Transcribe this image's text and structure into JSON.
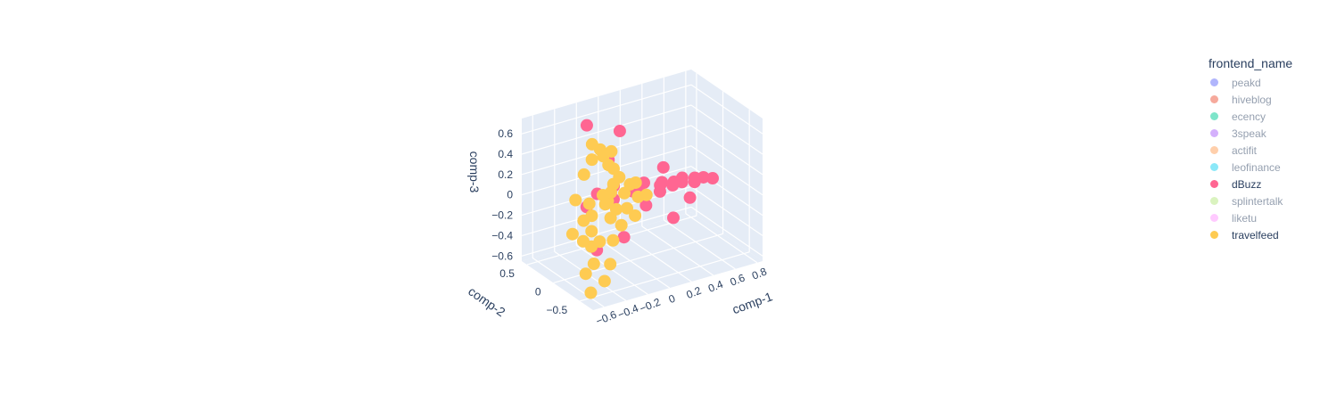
{
  "chart_data": {
    "type": "scatter3d",
    "legend_title": "frontend_name",
    "legend_placement": "right",
    "axes": {
      "x": {
        "title": "comp-1",
        "ticks": [
          "−0.6",
          "−0.4",
          "−0.2",
          "0",
          "0.2",
          "0.4",
          "0.6",
          "0.8"
        ],
        "range": [
          -0.7,
          0.85
        ]
      },
      "y": {
        "title": "comp-2",
        "ticks": [
          "−0.5",
          "0",
          "0.5"
        ],
        "range": [
          -0.75,
          0.6
        ]
      },
      "z": {
        "title": "comp-3",
        "ticks": [
          "−0.6",
          "−0.4",
          "−0.2",
          "0",
          "0.2",
          "0.4",
          "0.6"
        ],
        "range": [
          -0.65,
          0.75
        ]
      }
    },
    "grid": true,
    "series": [
      {
        "name": "peakd",
        "color": "#636efa",
        "visible": false,
        "points": []
      },
      {
        "name": "hiveblog",
        "color": "#EF553B",
        "visible": false,
        "points": []
      },
      {
        "name": "ecency",
        "color": "#00cc96",
        "visible": false,
        "points": []
      },
      {
        "name": "3speak",
        "color": "#ab63fa",
        "visible": false,
        "points": []
      },
      {
        "name": "actifit",
        "color": "#FFA15A",
        "visible": false,
        "points": []
      },
      {
        "name": "leofinance",
        "color": "#19d3f3",
        "visible": false,
        "points": []
      },
      {
        "name": "dBuzz",
        "color": "#FF6692",
        "visible": true,
        "points": [
          [
            0.78,
            0.05,
            -0.1
          ],
          [
            0.72,
            0.1,
            -0.09
          ],
          [
            0.65,
            0.12,
            -0.08
          ],
          [
            0.6,
            0.02,
            -0.07
          ],
          [
            0.55,
            0.15,
            -0.06
          ],
          [
            0.5,
            0.05,
            -0.05
          ],
          [
            0.45,
            0.1,
            -0.05
          ],
          [
            0.4,
            0.02,
            -0.04
          ],
          [
            0.35,
            0.12,
            -0.03
          ],
          [
            0.3,
            0.05,
            -0.02
          ],
          [
            0.25,
            -0.05,
            -0.03
          ],
          [
            0.2,
            0.15,
            0.0
          ],
          [
            0.45,
            0.3,
            0.02
          ],
          [
            0.3,
            -0.2,
            -0.25
          ],
          [
            0.5,
            -0.1,
            -0.15
          ],
          [
            0.1,
            0.05,
            0.0
          ],
          [
            0.0,
            -0.05,
            0.05
          ],
          [
            -0.1,
            0.1,
            0.08
          ],
          [
            -0.2,
            -0.1,
            0.05
          ],
          [
            -0.3,
            0.0,
            0.1
          ],
          [
            0.1,
            0.4,
            0.45
          ],
          [
            -0.1,
            0.2,
            0.3
          ],
          [
            -0.25,
            0.3,
            0.65
          ],
          [
            -0.4,
            -0.2,
            -0.35
          ],
          [
            -0.2,
            -0.3,
            -0.25
          ],
          [
            -0.3,
            0.2,
            -0.1
          ],
          [
            -0.15,
            0.0,
            0.0
          ],
          [
            0.05,
            -0.2,
            -0.05
          ]
        ]
      },
      {
        "name": "splintertalk",
        "color": "#B6E880",
        "visible": false,
        "points": []
      },
      {
        "name": "liketu",
        "color": "#FF97FF",
        "visible": false,
        "points": []
      },
      {
        "name": "travelfeed",
        "color": "#FECB52",
        "visible": true,
        "points": [
          [
            -0.25,
            0.2,
            0.5
          ],
          [
            -0.2,
            0.15,
            0.45
          ],
          [
            -0.3,
            0.1,
            0.4
          ],
          [
            -0.15,
            0.0,
            0.3
          ],
          [
            -0.1,
            0.2,
            0.25
          ],
          [
            -0.2,
            -0.1,
            0.2
          ],
          [
            -0.05,
            0.1,
            0.15
          ],
          [
            -0.3,
            -0.2,
            0.1
          ],
          [
            -0.15,
            0.05,
            0.05
          ],
          [
            -0.25,
            -0.05,
            0.0
          ],
          [
            -0.1,
            -0.15,
            -0.05
          ],
          [
            -0.35,
            0.0,
            -0.1
          ],
          [
            -0.2,
            -0.25,
            -0.15
          ],
          [
            -0.4,
            -0.1,
            -0.2
          ],
          [
            -0.3,
            -0.3,
            -0.25
          ],
          [
            -0.45,
            -0.2,
            -0.3
          ],
          [
            -0.5,
            -0.35,
            -0.4
          ],
          [
            -0.55,
            -0.3,
            -0.5
          ],
          [
            -0.6,
            -0.5,
            -0.6
          ],
          [
            -0.45,
            -0.45,
            -0.55
          ],
          [
            -0.35,
            -0.35,
            -0.45
          ],
          [
            0.0,
            0.0,
            0.1
          ],
          [
            0.05,
            -0.05,
            -0.02
          ],
          [
            0.1,
            0.1,
            0.05
          ],
          [
            -0.05,
            0.25,
            0.35
          ],
          [
            -0.1,
            0.3,
            0.3
          ],
          [
            -0.2,
            0.05,
            -0.05
          ],
          [
            -0.3,
            0.15,
            -0.05
          ],
          [
            -0.4,
            0.05,
            -0.15
          ],
          [
            -0.25,
            -0.15,
            -0.1
          ],
          [
            -0.15,
            -0.05,
            -0.08
          ],
          [
            -0.35,
            -0.15,
            -0.3
          ],
          [
            -0.5,
            -0.15,
            -0.25
          ],
          [
            -0.2,
            0.1,
            0.02
          ],
          [
            -0.05,
            -0.2,
            -0.12
          ],
          [
            0.15,
            0.0,
            -0.05
          ],
          [
            -0.45,
            0.1,
            0.05
          ],
          [
            -0.55,
            -0.05,
            -0.2
          ],
          [
            -0.3,
            0.25,
            0.2
          ],
          [
            -0.1,
            -0.1,
            0.08
          ]
        ]
      }
    ]
  }
}
